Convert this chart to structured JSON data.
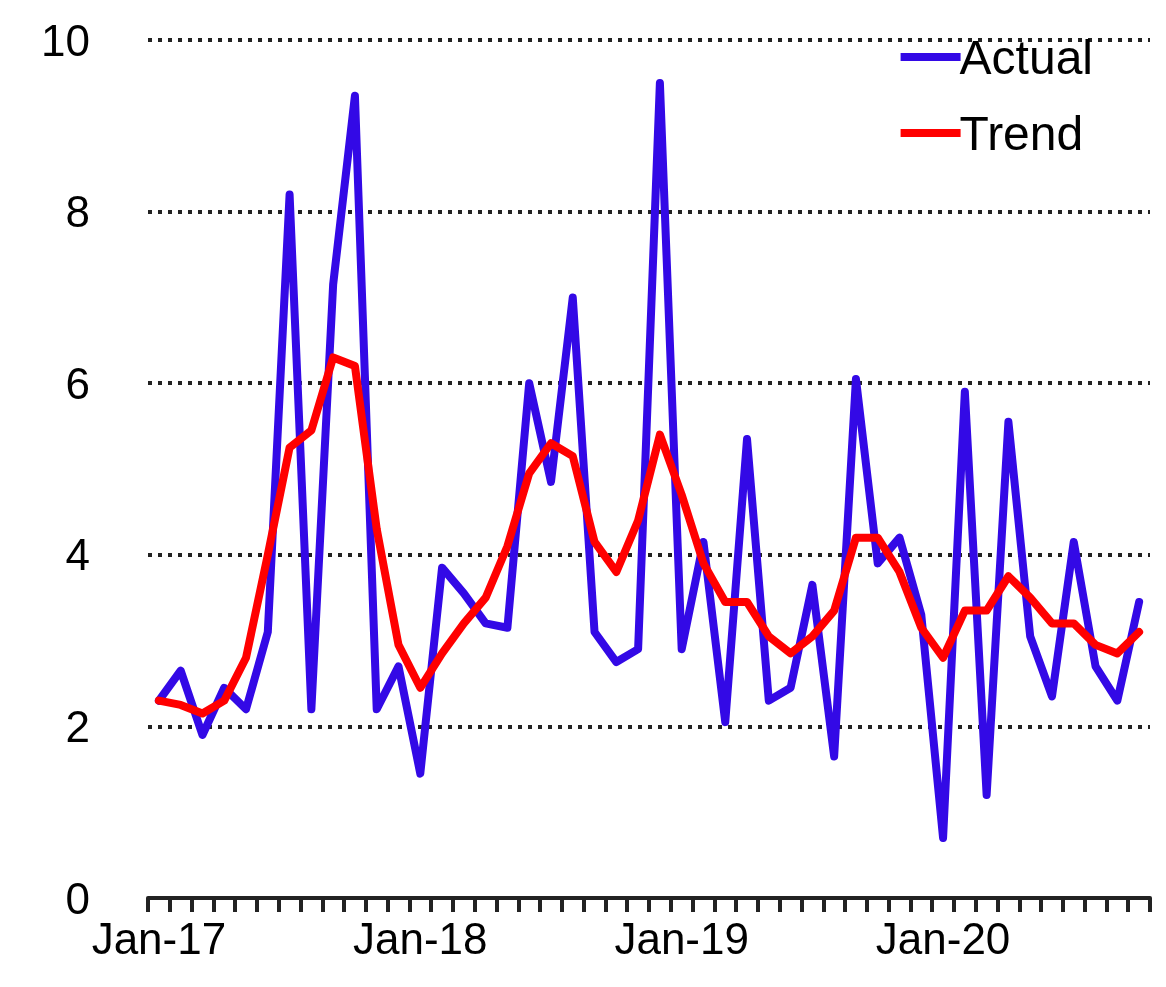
{
  "chart_data": {
    "type": "line",
    "categories": [
      "Jan-17",
      null,
      null,
      null,
      null,
      null,
      null,
      null,
      null,
      null,
      null,
      null,
      "Jan-18",
      null,
      null,
      null,
      null,
      null,
      null,
      null,
      null,
      null,
      null,
      null,
      "Jan-19",
      null,
      null,
      null,
      null,
      null,
      null,
      null,
      null,
      null,
      null,
      null,
      "Jan-20",
      null,
      null,
      null,
      null,
      null,
      null,
      null,
      null,
      null
    ],
    "series": [
      {
        "name": "Actual",
        "color": "#3309e6",
        "values": [
          2.3,
          2.65,
          1.9,
          2.45,
          2.2,
          3.1,
          8.2,
          2.2,
          7.15,
          9.35,
          2.2,
          2.7,
          1.45,
          3.85,
          3.55,
          3.2,
          3.15,
          6.0,
          4.85,
          7.0,
          3.1,
          2.75,
          2.9,
          9.5,
          2.9,
          4.15,
          2.05,
          5.35,
          2.3,
          2.45,
          3.65,
          1.65,
          6.05,
          3.9,
          4.2,
          3.3,
          0.7,
          5.9,
          1.2,
          5.55,
          3.05,
          2.35,
          4.15,
          2.7,
          2.3,
          3.45
        ]
      },
      {
        "name": "Trend",
        "color": "#ff0000",
        "values": [
          2.3,
          2.25,
          2.15,
          2.3,
          2.8,
          4.0,
          5.25,
          5.45,
          6.3,
          6.2,
          4.3,
          2.95,
          2.45,
          2.85,
          3.2,
          3.5,
          4.1,
          4.95,
          5.3,
          5.15,
          4.15,
          3.8,
          4.4,
          5.4,
          4.7,
          3.9,
          3.45,
          3.45,
          3.05,
          2.85,
          3.05,
          3.35,
          4.2,
          4.2,
          3.8,
          3.15,
          2.8,
          3.35,
          3.35,
          3.75,
          3.5,
          3.2,
          3.2,
          2.95,
          2.85,
          3.1
        ]
      }
    ],
    "ylim": [
      0,
      10
    ],
    "yticks": [
      0,
      2,
      4,
      6,
      8,
      10
    ],
    "grid": "y",
    "legend": "top right",
    "marker": "none",
    "line_style": "solid"
  }
}
